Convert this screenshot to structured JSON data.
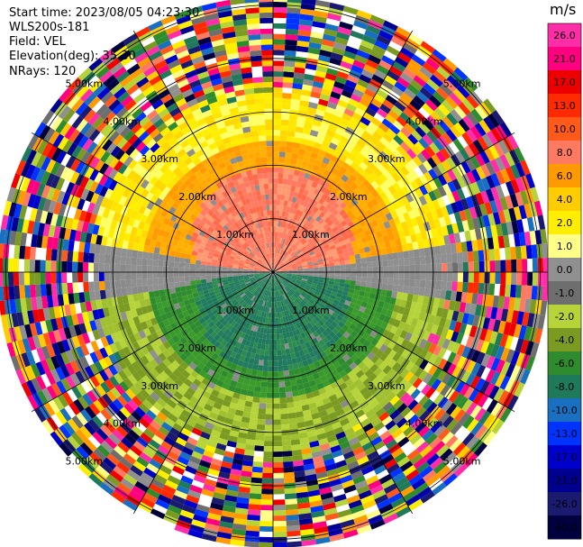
{
  "info": {
    "start_time": "Start time: 2023/08/05 04:23:30",
    "instrument": "WLS200s-181",
    "field": "Field: VEL",
    "elevation": "Elevation(deg): 35.30",
    "nrays": "NRays: 120"
  },
  "colorbar": {
    "unit": "m/s",
    "ticks": [
      "26.0",
      "21.0",
      "17.0",
      "13.0",
      "10.0",
      "8.0",
      "6.0",
      "4.0",
      "2.0",
      "1.0",
      "0.0",
      "-1.0",
      "-2.0",
      "-4.0",
      "-6.0",
      "-8.0",
      "-10.0",
      "-13.0",
      "-17.0",
      "-21.0",
      "-26.0",
      "-30.0"
    ],
    "colors": [
      "#ff2da8",
      "#ff0080",
      "#ee0000",
      "#ff2a00",
      "#ff5a1a",
      "#ff7a60",
      "#ff9a00",
      "#ffcc00",
      "#ffee00",
      "#ffff88",
      "#909090",
      "#6e6e6e",
      "#b6d33a",
      "#7a9a22",
      "#2e8b2e",
      "#1e7a5a",
      "#1a70c0",
      "#0033ff",
      "#0000cc",
      "#000090",
      "#1a1a70",
      "#000040"
    ]
  },
  "chart_data": {
    "type": "ppi",
    "field": "VEL",
    "unit": "m/s",
    "nrays": 120,
    "elevation_deg": 35.3,
    "range_rings_km": [
      1.0,
      2.0,
      3.0,
      4.0,
      5.0
    ],
    "ring_labels": [
      "1.00km",
      "2.00km",
      "3.00km",
      "4.00km",
      "5.00km"
    ],
    "spokes_deg": [
      0,
      30,
      60,
      90,
      120,
      150,
      180,
      210,
      240,
      270,
      300,
      330
    ],
    "velocity_pattern": [
      {
        "sector": "north",
        "range_km": [
          0,
          2.5
        ],
        "velocity_ms": 8.0
      },
      {
        "sector": "north",
        "range_km": [
          2.5,
          3.3
        ],
        "velocity_ms": 2.0
      },
      {
        "sector": "east-west horizon",
        "range_km": [
          0,
          2.6
        ],
        "velocity_ms": 0.0
      },
      {
        "sector": "south",
        "range_km": [
          0,
          2.2
        ],
        "velocity_ms": -8.0
      },
      {
        "sector": "south",
        "range_km": [
          2.2,
          3.3
        ],
        "velocity_ms": -4.0
      },
      {
        "sector": "all",
        "range_km": [
          3.3,
          5.2
        ],
        "velocity_ms": "noise"
      }
    ]
  }
}
